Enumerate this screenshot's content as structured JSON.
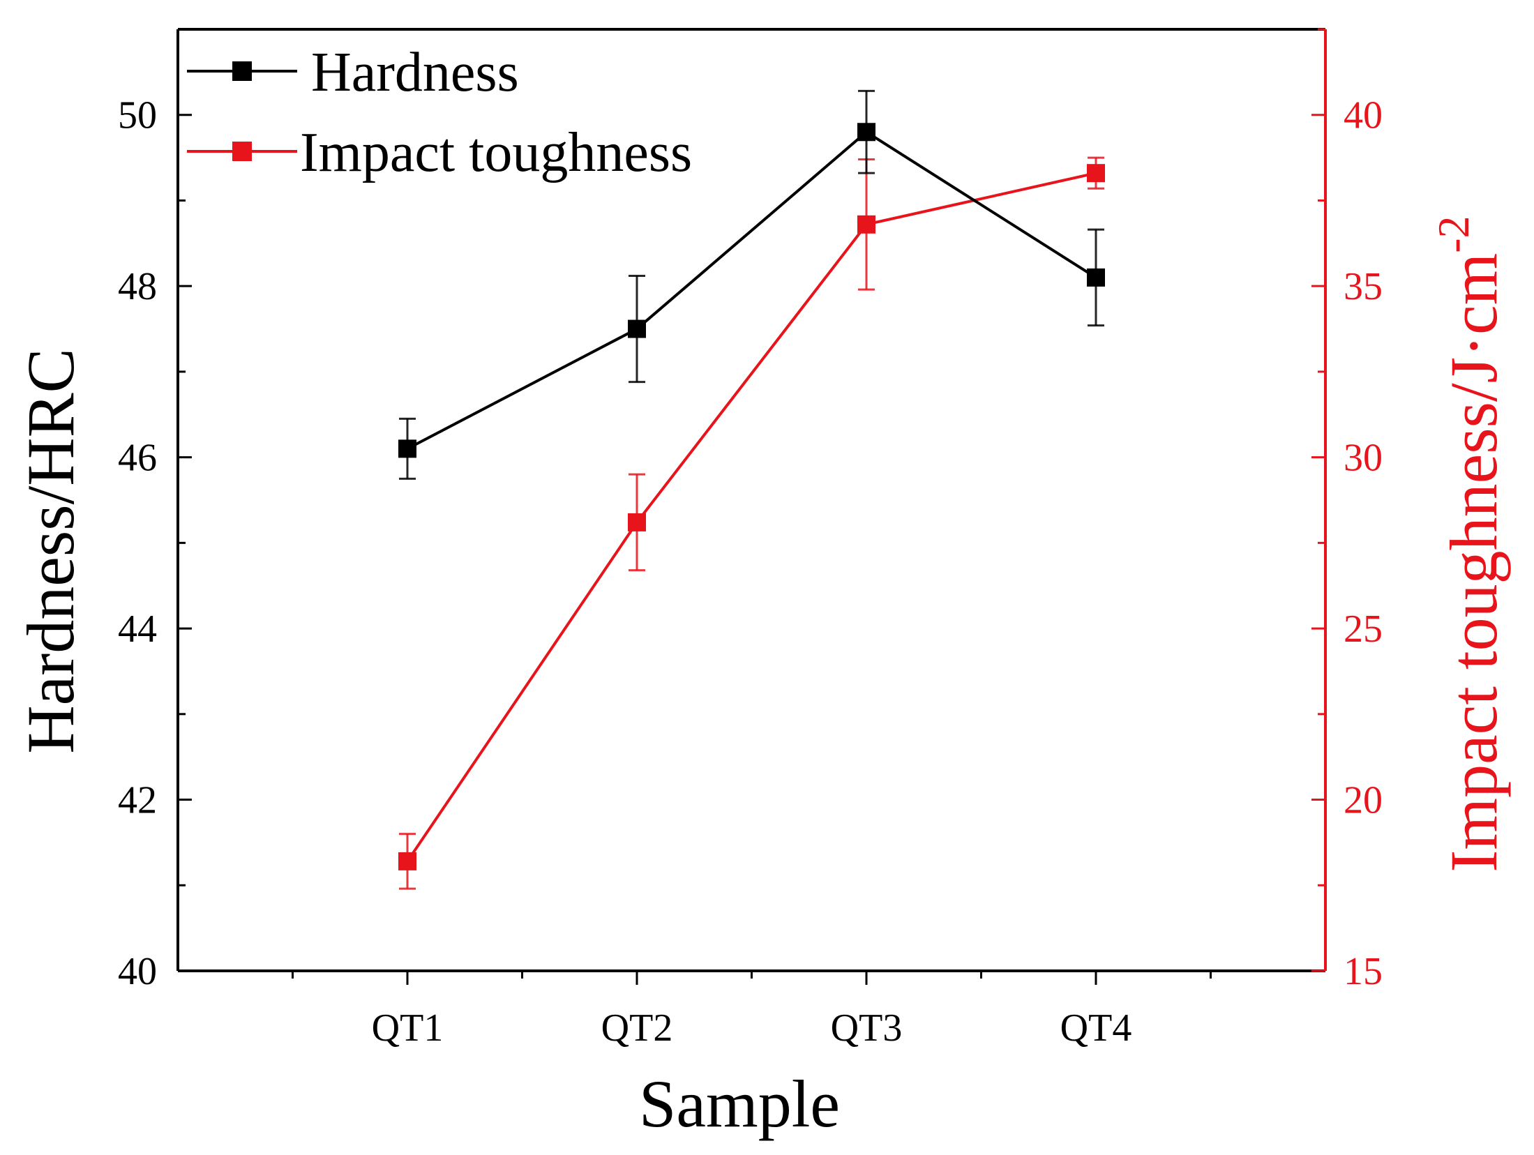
{
  "chart_data": {
    "type": "line",
    "categories": [
      "QT1",
      "QT2",
      "QT3",
      "QT4"
    ],
    "xlabel": "Sample",
    "ylabel_left": "Hardness/HRC",
    "ylabel_right_main": "Impact toughness/J·cm",
    "ylabel_right_sup": "-2",
    "ylim_left": [
      40,
      51
    ],
    "ylim_right": [
      15,
      42.5
    ],
    "left_ticks": [
      40,
      42,
      44,
      46,
      48,
      50
    ],
    "right_ticks": [
      15,
      20,
      25,
      30,
      35,
      40
    ],
    "legend_position": "top-left",
    "series": [
      {
        "name": "Hardness",
        "axis": "left",
        "color": "#000000",
        "values": [
          46.1,
          47.5,
          49.8,
          48.1
        ],
        "errors": [
          0.35,
          0.62,
          0.48,
          0.56
        ]
      },
      {
        "name": "Impact toughness",
        "axis": "right",
        "color": "#e8141c",
        "values": [
          18.2,
          28.1,
          36.8,
          38.3
        ],
        "errors": [
          0.8,
          1.4,
          1.9,
          0.45
        ]
      }
    ]
  }
}
